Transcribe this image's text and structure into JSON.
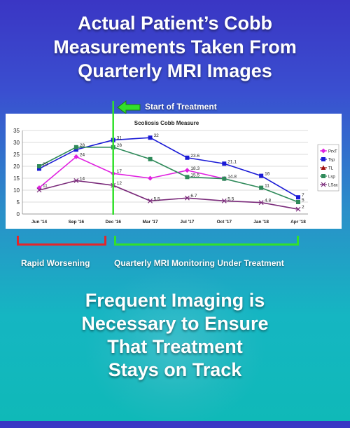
{
  "headline": {
    "lines": [
      "Actual Patient’s Cobb",
      "Measurements Taken From",
      "Quarterly MRI Images"
    ]
  },
  "annotation": {
    "start_label": "Start of Treatment"
  },
  "brackets": {
    "rapid_label": "Rapid Worsening",
    "monitor_label": "Quarterly MRI Monitoring Under Treatment"
  },
  "footer": {
    "lines": [
      "Frequent Imaging is",
      "Necessary to Ensure",
      "That Treatment",
      "Stays on Track"
    ]
  },
  "colors": {
    "red_bracket": "#e3262b",
    "green_bracket": "#32e02b",
    "treatment_line": "#32e02b"
  },
  "chart_data": {
    "type": "line",
    "title": "Scoliosis Cobb Measure",
    "categories": [
      "Jun '14",
      "Sep '16",
      "Dec '16",
      "Mar '17",
      "Jul '17",
      "Oct '17",
      "Jan '18",
      "Apr '18"
    ],
    "ylim": [
      0,
      35
    ],
    "yticks": [
      0,
      5,
      10,
      15,
      20,
      25,
      30,
      35
    ],
    "grid": true,
    "legend": "right",
    "treatment_start_category": "Dec '16",
    "series": [
      {
        "name": "PrxT",
        "color": "#e020e0",
        "marker": "diamond",
        "values": [
          11,
          24,
          17,
          15,
          18.3,
          14.8,
          null,
          null
        ],
        "labels": [
          "11",
          "24",
          "17",
          "",
          "18.3",
          "14.8",
          "",
          ""
        ]
      },
      {
        "name": "Tsp",
        "color": "#1a1ad6",
        "marker": "square",
        "values": [
          19,
          27,
          31,
          32,
          23.6,
          21.1,
          16,
          7
        ],
        "labels": [
          "",
          "",
          "31",
          "32",
          "23.6",
          "21.1",
          "16",
          "7"
        ]
      },
      {
        "name": "TL",
        "color": "#a01010",
        "marker": "triangle",
        "values": [
          null,
          null,
          null,
          null,
          null,
          null,
          null,
          null
        ],
        "labels": []
      },
      {
        "name": "Lsp",
        "color": "#2f8a5a",
        "marker": "square",
        "values": [
          20,
          28,
          28,
          23,
          15.5,
          14.8,
          11,
          5
        ],
        "labels": [
          "20",
          "28",
          "28",
          "",
          "15.5",
          "",
          "11",
          "5"
        ]
      },
      {
        "name": "LSac",
        "color": "#7a2a7a",
        "marker": "x",
        "values": [
          10,
          14,
          12,
          5.5,
          6.7,
          5.5,
          4.8,
          2
        ],
        "labels": [
          "",
          "14",
          "12",
          "5.5",
          "6.7",
          "5.5",
          "4.8",
          "2"
        ]
      }
    ]
  }
}
